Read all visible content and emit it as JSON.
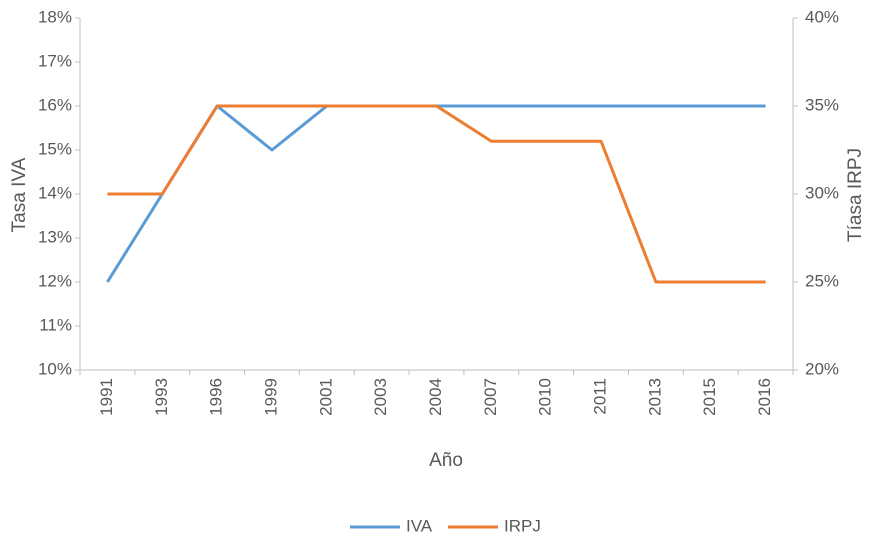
{
  "chart_data": {
    "type": "line",
    "x_label": "Año",
    "y_label": "Tasa IVA",
    "y2_label": "Tíasa IRPJ",
    "categories": [
      "1991",
      "1993",
      "1996",
      "1999",
      "2001",
      "2003",
      "2004",
      "2007",
      "2010",
      "2011",
      "2013",
      "2015",
      "2016"
    ],
    "series": [
      {
        "name": "IVA",
        "color": "#5b9bd5",
        "values": [
          12,
          14,
          16,
          15,
          16,
          16,
          16,
          16,
          16,
          16,
          16,
          16,
          16
        ]
      },
      {
        "name": "IRPJ",
        "color": "#ed7d31",
        "axis": "y2",
        "values": [
          30,
          30,
          35,
          35,
          35,
          35,
          35,
          33,
          33,
          33,
          25,
          25,
          25
        ]
      }
    ],
    "ylim": [
      10,
      18
    ],
    "yticks": [
      {
        "value": 10,
        "label": "10%"
      },
      {
        "value": 11,
        "label": "11%"
      },
      {
        "value": 12,
        "label": "12%"
      },
      {
        "value": 13,
        "label": "13%"
      },
      {
        "value": 14,
        "label": "14%"
      },
      {
        "value": 15,
        "label": "15%"
      },
      {
        "value": 16,
        "label": "16%"
      },
      {
        "value": 17,
        "label": "17%"
      },
      {
        "value": 18,
        "label": "18%"
      }
    ],
    "y2lim": [
      20,
      40
    ],
    "y2ticks": [
      {
        "value": 20,
        "label": "20%"
      },
      {
        "value": 25,
        "label": "25%"
      },
      {
        "value": 30,
        "label": "30%"
      },
      {
        "value": 35,
        "label": "35%"
      },
      {
        "value": 40,
        "label": "40%"
      }
    ],
    "legend": "bottom"
  }
}
